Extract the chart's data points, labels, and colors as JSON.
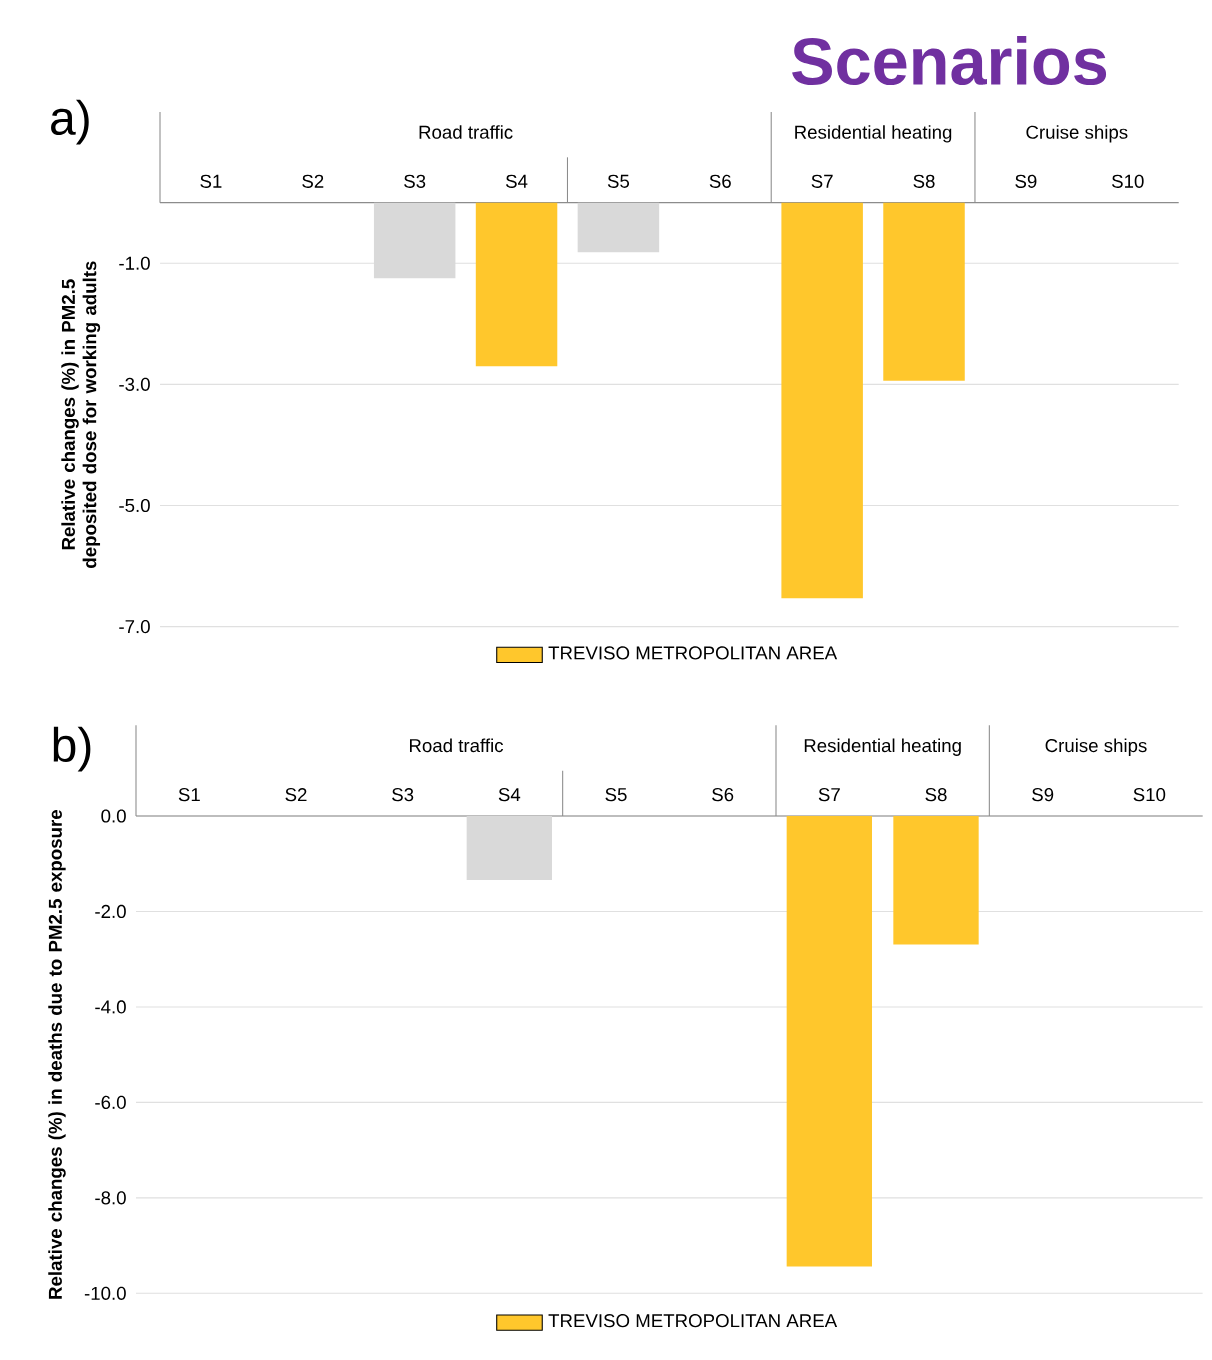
{
  "chart_data": [
    {
      "type": "bar",
      "title": "Scenarios",
      "subtitle": "a)",
      "ylabel": "Relative changes (%) in PM2.5 deposited dose for working adults",
      "annotations": [
        "Road traffic",
        "Residential heating",
        "Cruise ships"
      ],
      "categories": [
        "S1",
        "S2",
        "S3",
        "S4",
        "S5",
        "S6",
        "S7",
        "S8",
        "S9",
        "S10"
      ],
      "series": [
        {
          "name": "TREVISO METROPOLITAN AREA",
          "color": "#ffc72c",
          "colors": [
            null,
            null,
            "#d9d9d9",
            "#ffc72c",
            "#d9d9d9",
            null,
            "#ffc72c",
            "#ffc72c",
            null,
            null
          ],
          "values": [
            null,
            null,
            -1.25,
            -2.7,
            -0.82,
            null,
            -6.53,
            -2.94,
            null,
            null
          ]
        }
      ],
      "ylim": [
        -7,
        0
      ],
      "yticks": [
        {
          "value": -1,
          "label": "-1.0"
        },
        {
          "value": -3,
          "label": "-3.0"
        },
        {
          "value": -5,
          "label": "-5.0"
        },
        {
          "value": -7,
          "label": "-7.0"
        }
      ],
      "grid": "y",
      "legend": "bottom"
    },
    {
      "type": "bar",
      "subtitle": "b)",
      "ylabel": "Relative changes (%) in deaths due to PM2.5 exposure",
      "annotations": [
        "Road traffic",
        "Residential heating",
        "Cruise ships"
      ],
      "categories": [
        "S1",
        "S2",
        "S3",
        "S4",
        "S5",
        "S6",
        "S7",
        "S8",
        "S9",
        "S10"
      ],
      "series": [
        {
          "name": "TREVISO METROPOLITAN AREA",
          "color": "#ffc72c",
          "colors": [
            null,
            null,
            null,
            "#d9d9d9",
            null,
            null,
            "#ffc72c",
            "#ffc72c",
            null,
            null
          ],
          "values": [
            null,
            null,
            null,
            -1.34,
            null,
            null,
            -9.44,
            -2.69,
            null,
            null
          ]
        }
      ],
      "ylim": [
        -10,
        0
      ],
      "yticks": [
        {
          "value": 0,
          "label": "0.0"
        },
        {
          "value": -2,
          "label": "-2.0"
        },
        {
          "value": -4,
          "label": "-4.0"
        },
        {
          "value": -6,
          "label": "-6.0"
        },
        {
          "value": -8,
          "label": "-8.0"
        },
        {
          "value": -10,
          "label": "-10.0"
        }
      ],
      "grid": "y",
      "legend": "bottom"
    }
  ]
}
